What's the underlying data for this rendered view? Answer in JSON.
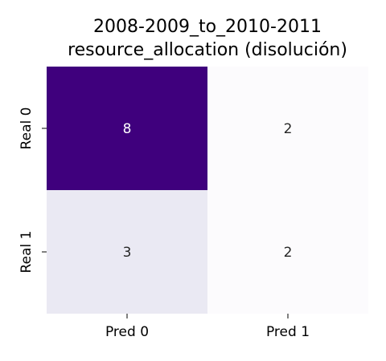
{
  "chart_data": {
    "type": "heatmap",
    "title_lines": [
      "2008-2009_to_2010-2011",
      "resource_allocation (disolución)"
    ],
    "x_tick_labels": [
      "Pred 0",
      "Pred 1"
    ],
    "y_tick_labels": [
      "Real 0",
      "Real 1"
    ],
    "matrix": [
      [
        8,
        2
      ],
      [
        3,
        2
      ]
    ],
    "colorbar": false,
    "colormap": {
      "low": "#fcfbfd",
      "mid": "#e6e5f1",
      "high": "#3f007d"
    },
    "text_colors": {
      "light": "#ffffff",
      "dark": "#262626"
    }
  }
}
